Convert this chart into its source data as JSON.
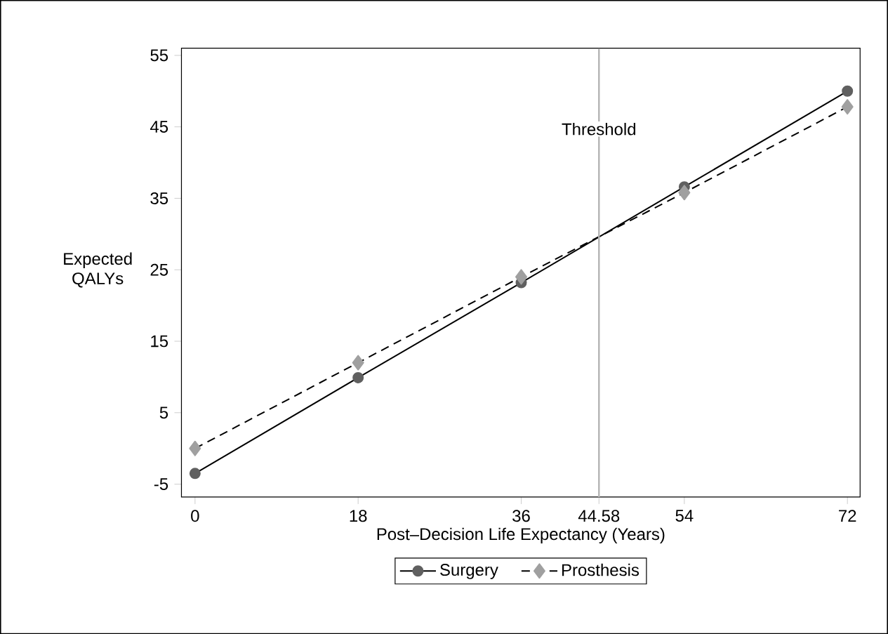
{
  "chart_data": {
    "type": "line",
    "xlabel": "Post–Decision Life Expectancy (Years)",
    "ylabel": "Expected QALYs",
    "x": [
      0,
      18,
      36,
      54,
      72
    ],
    "series": [
      {
        "name": "Surgery",
        "color": "#606060",
        "values": [
          -3.5,
          9.9,
          23.2,
          36.6,
          50.0
        ],
        "marker": "circle",
        "line_style": "solid"
      },
      {
        "name": "Prosthesis",
        "color": "#a0a0a0",
        "values": [
          0.0,
          12.0,
          24.0,
          35.8,
          47.8
        ],
        "marker": "diamond",
        "line_style": "dashed"
      }
    ],
    "xlim": [
      -1.5,
      73.4
    ],
    "ylim": [
      -6.8,
      56
    ],
    "xticks": [
      0,
      18,
      36,
      44.58,
      54,
      72
    ],
    "yticks": [
      -5,
      5,
      15,
      25,
      35,
      45,
      55
    ],
    "ref_lines": [
      {
        "axis": "x",
        "value": 44.58,
        "label": "Threshold",
        "color": "#b4b4b4"
      }
    ],
    "grid": false,
    "legend": "bottom"
  }
}
